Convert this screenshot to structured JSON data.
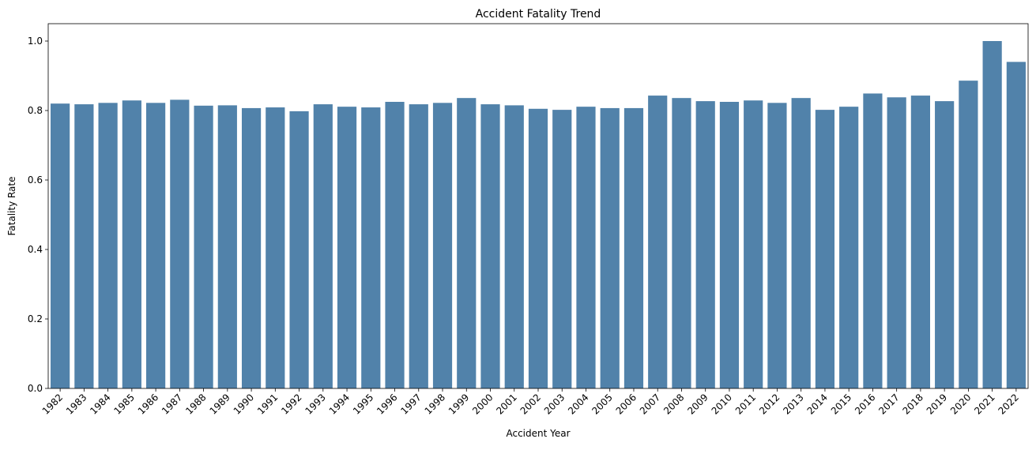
{
  "chart_data": {
    "type": "bar",
    "title": "Accident Fatality Trend",
    "xlabel": "Accident Year",
    "ylabel": "Fatality Rate",
    "ylim": [
      0,
      1.05
    ],
    "yticks": [
      0.0,
      0.2,
      0.4,
      0.6,
      0.8,
      1.0
    ],
    "ytick_labels": [
      "0.0",
      "0.2",
      "0.4",
      "0.6",
      "0.8",
      "1.0"
    ],
    "grid": false,
    "legend": "none",
    "bar_color": "#5182aa",
    "categories": [
      "1982",
      "1983",
      "1984",
      "1985",
      "1986",
      "1987",
      "1988",
      "1989",
      "1990",
      "1991",
      "1992",
      "1993",
      "1994",
      "1995",
      "1996",
      "1997",
      "1998",
      "1999",
      "2000",
      "2001",
      "2002",
      "2003",
      "2004",
      "2005",
      "2006",
      "2007",
      "2008",
      "2009",
      "2010",
      "2011",
      "2012",
      "2013",
      "2014",
      "2015",
      "2016",
      "2017",
      "2018",
      "2019",
      "2020",
      "2021",
      "2022"
    ],
    "values": [
      0.82,
      0.818,
      0.822,
      0.829,
      0.822,
      0.831,
      0.814,
      0.815,
      0.807,
      0.809,
      0.798,
      0.818,
      0.811,
      0.809,
      0.825,
      0.818,
      0.822,
      0.836,
      0.818,
      0.815,
      0.805,
      0.802,
      0.811,
      0.807,
      0.807,
      0.843,
      0.836,
      0.827,
      0.825,
      0.829,
      0.822,
      0.836,
      0.802,
      0.811,
      0.849,
      0.838,
      0.843,
      0.827,
      0.886,
      1.0,
      0.94
    ]
  }
}
